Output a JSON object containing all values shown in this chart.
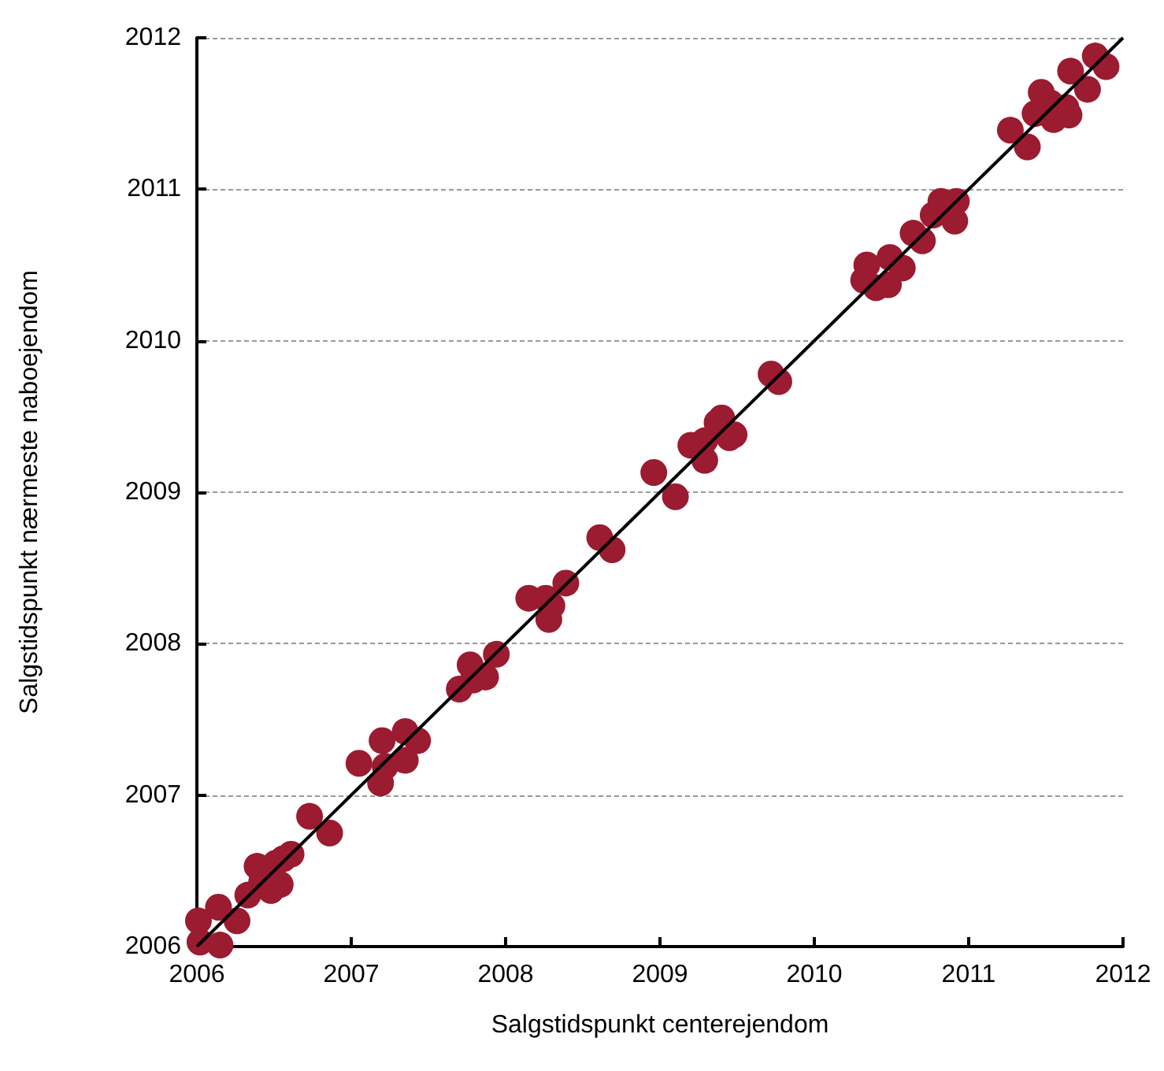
{
  "chart_data": {
    "type": "scatter",
    "xlabel": "Salgstidspunkt centerejendom",
    "ylabel": "Salgstidspunkt nærmeste naboejendom",
    "xlim": [
      2006,
      2012
    ],
    "xticks": [
      2006,
      2007,
      2008,
      2009,
      2010,
      2011,
      2012
    ],
    "ylim": [
      2006,
      2012
    ],
    "yticks": [
      2006,
      2007,
      2008,
      2009,
      2010,
      2011,
      2012
    ],
    "grid": "y",
    "marker": "circle",
    "series": [
      {
        "color": "#9b1b30",
        "x": [
          2006.01,
          2006.02,
          2006.14,
          2006.15,
          2006.26,
          2006.33,
          2006.39,
          2006.42,
          2006.51,
          2006.56,
          2006.61,
          2006.48,
          2006.54,
          2006.73,
          2006.86,
          2007.05,
          2007.22,
          2007.2,
          2007.19,
          2007.35,
          2007.35,
          2007.43,
          2007.7,
          2007.79,
          2007.87,
          2007.94,
          2007.77,
          2008.15,
          2008.26,
          2008.3,
          2008.28,
          2008.39,
          2008.61,
          2008.69,
          2008.96,
          2009.1,
          2009.2,
          2009.29,
          2009.29,
          2009.37,
          2009.4,
          2009.45,
          2009.48,
          2009.72,
          2009.77,
          2010.32,
          2010.34,
          2010.4,
          2010.48,
          2010.49,
          2010.57,
          2010.64,
          2010.7,
          2010.77,
          2010.82,
          2010.92,
          2010.91,
          2011.27,
          2011.38,
          2011.43,
          2011.47,
          2011.53,
          2011.55,
          2011.63,
          2011.65,
          2011.66,
          2011.77,
          2011.82,
          2011.89
        ],
        "values": [
          2006.17,
          2006.03,
          2006.26,
          2006.01,
          2006.17,
          2006.34,
          2006.53,
          2006.43,
          2006.55,
          2006.58,
          2006.61,
          2006.37,
          2006.41,
          2006.86,
          2006.75,
          2007.21,
          2007.19,
          2007.36,
          2007.08,
          2007.42,
          2007.23,
          2007.36,
          2007.7,
          2007.76,
          2007.78,
          2007.93,
          2007.86,
          2008.3,
          2008.3,
          2008.25,
          2008.16,
          2008.4,
          2008.7,
          2008.62,
          2009.13,
          2008.97,
          2009.31,
          2009.21,
          2009.34,
          2009.46,
          2009.49,
          2009.36,
          2009.38,
          2009.78,
          2009.73,
          2010.4,
          2010.5,
          2010.35,
          2010.37,
          2010.55,
          2010.48,
          2010.71,
          2010.66,
          2010.83,
          2010.92,
          2010.92,
          2010.79,
          2011.39,
          2011.28,
          2011.5,
          2011.64,
          2011.57,
          2011.46,
          2011.54,
          2011.49,
          2011.78,
          2011.66,
          2011.88,
          2011.81
        ]
      },
      {
        "type": "line",
        "color": "#000000",
        "marker": "none",
        "x": [
          2006,
          2012
        ],
        "values": [
          2006,
          2012
        ]
      }
    ]
  }
}
